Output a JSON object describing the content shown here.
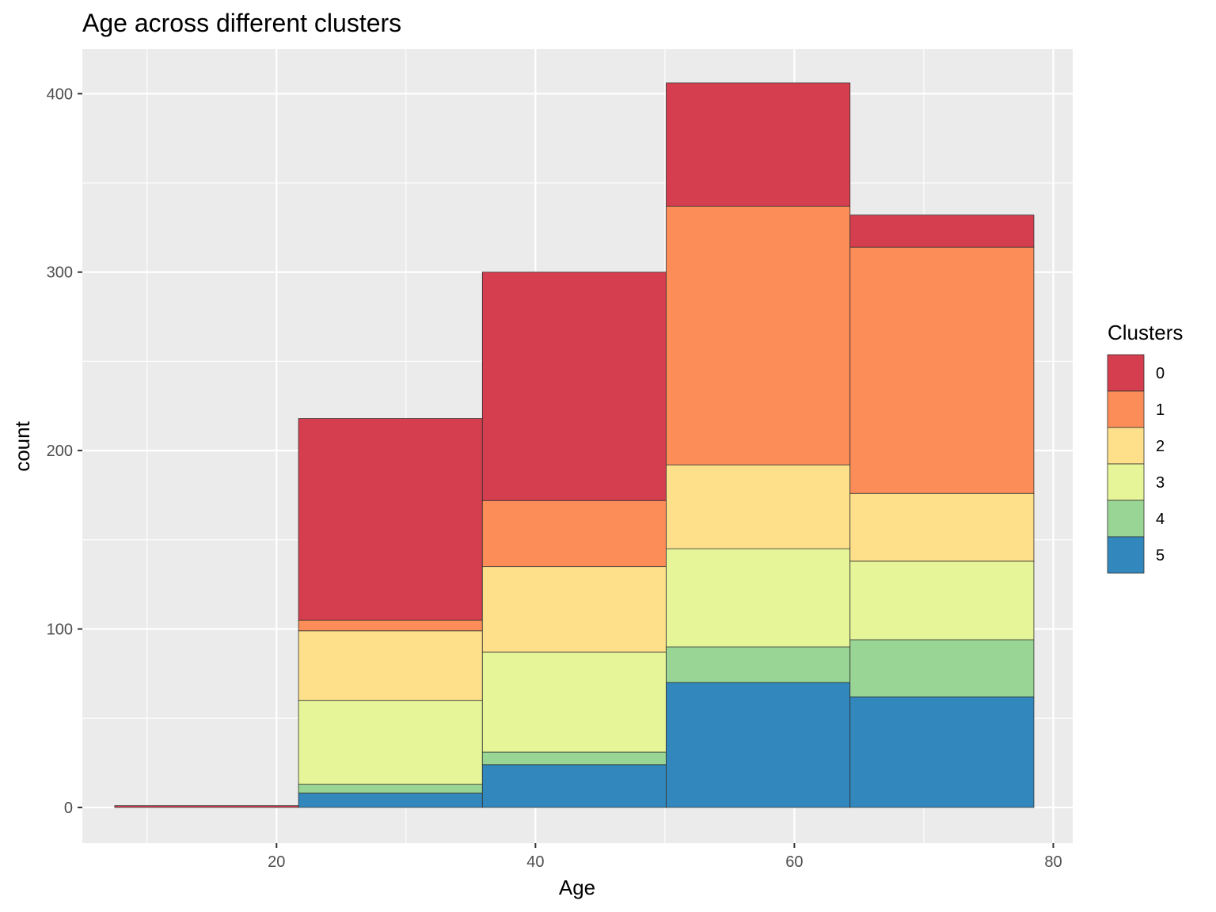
{
  "chart_data": {
    "type": "bar",
    "subtype": "stacked-histogram",
    "title": "Age across different clusters",
    "xlabel": "Age",
    "ylabel": "count",
    "xlim": [
      5,
      81.5
    ],
    "ylim": [
      -20,
      425
    ],
    "x_ticks": [
      20,
      40,
      60,
      80
    ],
    "y_ticks": [
      0,
      100,
      200,
      300,
      400
    ],
    "grid": true,
    "legend": {
      "title": "Clusters",
      "position": "right"
    },
    "bins": [
      {
        "x0": 7.5,
        "x1": 21.7
      },
      {
        "x0": 21.7,
        "x1": 35.9
      },
      {
        "x0": 35.9,
        "x1": 50.1
      },
      {
        "x0": 50.1,
        "x1": 64.3
      },
      {
        "x0": 64.3,
        "x1": 78.5
      }
    ],
    "series": [
      {
        "name": "0",
        "color": "#D53E4F",
        "values": [
          1,
          113,
          128,
          69,
          18
        ]
      },
      {
        "name": "1",
        "color": "#FC8D59",
        "values": [
          0,
          6,
          37,
          145,
          138
        ]
      },
      {
        "name": "2",
        "color": "#FEE08B",
        "values": [
          0,
          39,
          48,
          47,
          38
        ]
      },
      {
        "name": "3",
        "color": "#E6F598",
        "values": [
          0,
          47,
          56,
          55,
          44
        ]
      },
      {
        "name": "4",
        "color": "#99D594",
        "values": [
          0,
          5,
          7,
          20,
          32
        ]
      },
      {
        "name": "5",
        "color": "#3288BD",
        "values": [
          0,
          8,
          24,
          70,
          62
        ]
      }
    ]
  }
}
